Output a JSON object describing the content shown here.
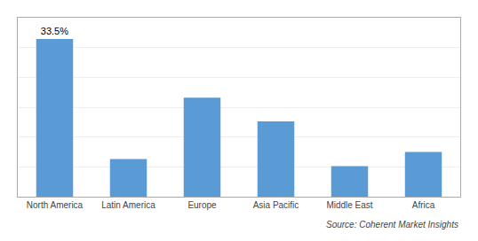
{
  "chart_data": {
    "type": "bar",
    "categories": [
      "North America",
      "Latin America",
      "Europe",
      "Asia Pacific",
      "Middle East",
      "Africa"
    ],
    "values": [
      33.5,
      8.0,
      21.0,
      16.0,
      6.5,
      9.5
    ],
    "value_labels": [
      "33.5%",
      null,
      null,
      null,
      null,
      null
    ],
    "data_labels": true,
    "color": "#5B9BD5",
    "ylim": [
      0,
      38
    ],
    "yticks": [
      0,
      6.333333333333333,
      12.666666666666666,
      19,
      25.333333333333332,
      31.666666666666664,
      38
    ],
    "grid": true,
    "tick_labels": "x",
    "annotations": [
      "Source: Coherent Market Insights"
    ]
  }
}
